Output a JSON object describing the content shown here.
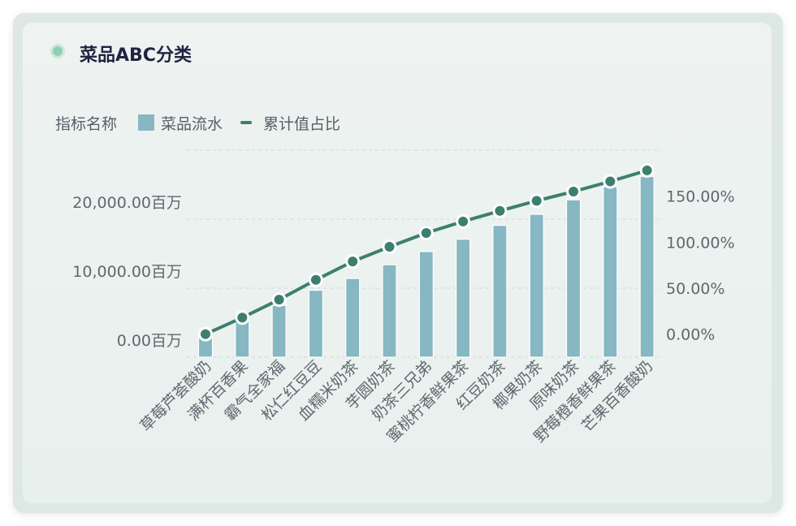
{
  "card": {
    "title": "菜品ABC分类"
  },
  "legend": {
    "name": "指标名称",
    "bar_label": "菜品流水",
    "line_label": "累计值占比"
  },
  "colors": {
    "bar": "#86b7c3",
    "line": "#3d7f6e",
    "title_dot": "#8fcfb5"
  },
  "chart_data": {
    "type": "bar",
    "categories": [
      "草莓芦荟酸奶",
      "满杯百香果",
      "霸气全家福",
      "松仁红豆豆",
      "血糯米奶茶",
      "芋圆奶茶",
      "奶茶三兄弟",
      "蜜桃柠香鲜果茶",
      "红豆奶茶",
      "椰果奶茶",
      "原味奶茶",
      "野莓橙香鲜果茶",
      "芒果百香酸奶"
    ],
    "series": [
      {
        "name": "菜品流水",
        "type": "bar",
        "axis": "left",
        "values": [
          500,
          3100,
          5000,
          7200,
          8900,
          10900,
          12800,
          14600,
          16600,
          18200,
          20300,
          22200,
          23700
        ]
      },
      {
        "name": "累计值占比",
        "type": "line",
        "axis": "right",
        "values": [
          0.0,
          18.0,
          37.5,
          59.0,
          79.0,
          95.0,
          110.0,
          122.5,
          134.0,
          145.0,
          155.0,
          166.0,
          178.0
        ]
      }
    ],
    "left_axis": {
      "ticks": [
        "0.00百万",
        "10,000.00百万",
        "20,000.00百万"
      ],
      "range": [
        -2500,
        27500
      ]
    },
    "right_axis": {
      "ticks": [
        "0.00%",
        "50.00%",
        "100.00%",
        "150.00%"
      ],
      "range": [
        -25,
        200
      ]
    },
    "grid": true,
    "legend_position": "top-left"
  }
}
